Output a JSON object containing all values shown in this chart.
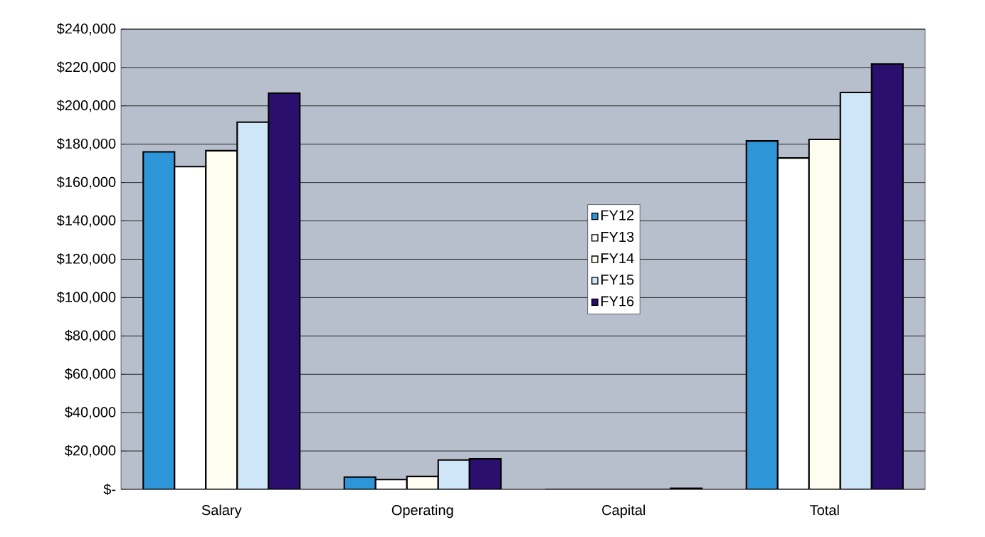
{
  "chart_data": {
    "type": "bar",
    "categories": [
      "Salary",
      "Operating",
      "Capital",
      "Total"
    ],
    "series": [
      {
        "name": "FY12",
        "color": "#2e95d8",
        "values": [
          176000,
          6400,
          0,
          181700
        ]
      },
      {
        "name": "FY13",
        "color": "#ffffff",
        "values": [
          168300,
          5100,
          0,
          172800
        ]
      },
      {
        "name": "FY14",
        "color": "#fffdf0",
        "values": [
          176600,
          6700,
          0,
          182500
        ]
      },
      {
        "name": "FY15",
        "color": "#cfe6f8",
        "values": [
          191500,
          15300,
          0,
          207000
        ]
      },
      {
        "name": "FY16",
        "color": "#2a0f6e",
        "values": [
          206600,
          15900,
          500,
          221800
        ]
      }
    ],
    "ylim": [
      0,
      240000
    ],
    "yticks": [
      {
        "value": 0,
        "label": "$-"
      },
      {
        "value": 20000,
        "label": "$20,000"
      },
      {
        "value": 40000,
        "label": "$40,000"
      },
      {
        "value": 60000,
        "label": "$60,000"
      },
      {
        "value": 80000,
        "label": "$80,000"
      },
      {
        "value": 100000,
        "label": "$100,000"
      },
      {
        "value": 120000,
        "label": "$120,000"
      },
      {
        "value": 140000,
        "label": "$140,000"
      },
      {
        "value": 160000,
        "label": "$160,000"
      },
      {
        "value": 180000,
        "label": "$180,000"
      },
      {
        "value": 200000,
        "label": "$200,000"
      },
      {
        "value": 220000,
        "label": "$220,000"
      },
      {
        "value": 240000,
        "label": "$240,000"
      }
    ],
    "grid": "y",
    "legend": "center"
  }
}
